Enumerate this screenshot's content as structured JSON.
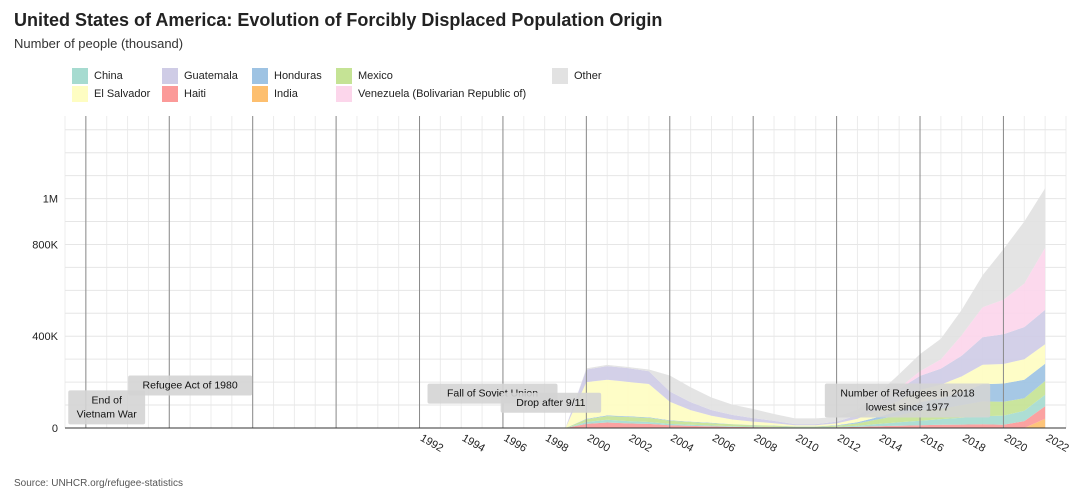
{
  "title": "United States of America:  Evolution of Forcibly Displaced Population Origin",
  "subtitle": "Number of people (thousand)",
  "source": "Source: UNHCR.org/refugee-statistics",
  "chart_data": {
    "type": "area",
    "stacked": true,
    "years": [
      1975,
      1976,
      1977,
      1978,
      1979,
      1980,
      1981,
      1982,
      1983,
      1984,
      1985,
      1986,
      1987,
      1988,
      1989,
      1990,
      1991,
      1992,
      1993,
      1994,
      1995,
      1996,
      1997,
      1998,
      1999,
      2000,
      2001,
      2002,
      2003,
      2004,
      2005,
      2006,
      2007,
      2008,
      2009,
      2010,
      2011,
      2012,
      2013,
      2014,
      2015,
      2016,
      2017,
      2018,
      2019,
      2020,
      2021,
      2022
    ],
    "series": [
      {
        "name": "India",
        "color": "#fdbf6f",
        "values": [
          0,
          0,
          0,
          0,
          0,
          0,
          0,
          0,
          0,
          0,
          0,
          0,
          0,
          0,
          0,
          0,
          0,
          0,
          0,
          0,
          0,
          0,
          0,
          0,
          0,
          0,
          0,
          0,
          0,
          0,
          0,
          0,
          0,
          0,
          0,
          0,
          0,
          0,
          0,
          0,
          0,
          0,
          0,
          0,
          0,
          0,
          0,
          40
        ]
      },
      {
        "name": "Haiti",
        "color": "#fb9a99",
        "values": [
          0,
          0,
          0,
          0,
          0,
          0,
          0,
          0,
          0,
          0,
          0,
          0,
          0,
          0,
          0,
          0,
          0,
          0,
          0,
          0,
          0,
          0,
          0,
          0,
          0,
          18,
          24,
          20,
          18,
          12,
          9,
          7,
          5,
          4,
          3,
          2,
          2,
          3,
          5,
          8,
          10,
          12,
          14,
          15,
          16,
          14,
          30,
          55
        ]
      },
      {
        "name": "China",
        "color": "#a6dbd0",
        "values": [
          0,
          0,
          0,
          0,
          0,
          0,
          0,
          0,
          0,
          0,
          0,
          0,
          0,
          0,
          0,
          0,
          0,
          0,
          0,
          0,
          0,
          0,
          0,
          0,
          0,
          8,
          12,
          10,
          8,
          6,
          5,
          4,
          3,
          2,
          2,
          1,
          1,
          2,
          5,
          10,
          15,
          20,
          25,
          30,
          35,
          40,
          45,
          50
        ]
      },
      {
        "name": "Mexico",
        "color": "#c5e395",
        "values": [
          0,
          0,
          0,
          0,
          0,
          0,
          0,
          0,
          0,
          0,
          0,
          0,
          0,
          0,
          0,
          0,
          0,
          0,
          0,
          0,
          0,
          0,
          0,
          0,
          0,
          12,
          16,
          18,
          18,
          14,
          12,
          10,
          8,
          6,
          5,
          3,
          3,
          5,
          10,
          20,
          30,
          45,
          45,
          55,
          65,
          60,
          55,
          60
        ]
      },
      {
        "name": "Honduras",
        "color": "#9ec3e3",
        "values": [
          0,
          0,
          0,
          0,
          0,
          0,
          0,
          0,
          0,
          0,
          0,
          0,
          0,
          0,
          0,
          0,
          0,
          0,
          0,
          0,
          0,
          0,
          0,
          0,
          0,
          2,
          3,
          3,
          3,
          2,
          2,
          2,
          1,
          1,
          1,
          1,
          1,
          2,
          5,
          10,
          20,
          35,
          45,
          55,
          75,
          80,
          80,
          75
        ]
      },
      {
        "name": "El Salvador",
        "color": "#fefdc2",
        "values": [
          0,
          0,
          0,
          0,
          0,
          0,
          0,
          0,
          0,
          0,
          0,
          0,
          0,
          0,
          0,
          0,
          0,
          0,
          0,
          0,
          0,
          0,
          0,
          0,
          0,
          160,
          155,
          150,
          145,
          80,
          50,
          30,
          20,
          15,
          10,
          5,
          5,
          8,
          15,
          30,
          45,
          55,
          60,
          70,
          85,
          85,
          90,
          85
        ]
      },
      {
        "name": "Guatemala",
        "color": "#cfcce6",
        "values": [
          0,
          0,
          0,
          0,
          0,
          0,
          0,
          0,
          0,
          0,
          0,
          0,
          0,
          0,
          0,
          0,
          0,
          0,
          0,
          0,
          0,
          0,
          0,
          0,
          0,
          55,
          60,
          60,
          55,
          45,
          35,
          25,
          20,
          15,
          10,
          5,
          5,
          8,
          15,
          30,
          50,
          60,
          70,
          90,
          120,
          130,
          140,
          150
        ]
      },
      {
        "name": "Venezuela (Bolivarian Republic of)",
        "color": "#fcd6eb",
        "values": [
          0,
          0,
          0,
          0,
          0,
          0,
          0,
          0,
          0,
          0,
          0,
          0,
          0,
          0,
          0,
          0,
          0,
          0,
          0,
          0,
          0,
          0,
          0,
          0,
          0,
          0,
          0,
          0,
          0,
          0,
          0,
          0,
          0,
          0,
          0,
          0,
          0,
          0,
          0,
          2,
          5,
          20,
          40,
          90,
          130,
          150,
          190,
          270
        ]
      },
      {
        "name": "Other",
        "color": "#e2e2e2",
        "values": [
          0,
          0,
          0,
          0,
          0,
          0,
          0,
          0,
          0,
          0,
          0,
          0,
          0,
          0,
          0,
          0,
          0,
          0,
          0,
          0,
          0,
          0,
          0,
          0,
          0,
          5,
          5,
          5,
          8,
          70,
          65,
          55,
          45,
          40,
          30,
          25,
          25,
          20,
          25,
          40,
          60,
          75,
          90,
          110,
          140,
          220,
          270,
          260
        ]
      }
    ],
    "legend_order": [
      "China",
      "Guatemala",
      "Honduras",
      "Mexico",
      "Other",
      "El Salvador",
      "Haiti",
      "India",
      "Venezuela (Bolivarian Republic of)"
    ],
    "y_ticks": [
      {
        "value": 0,
        "label": "0"
      },
      {
        "value": 400,
        "label": "400K"
      },
      {
        "value": 800,
        "label": "800K"
      },
      {
        "value": 1000,
        "label": "1M"
      }
    ],
    "ylim": [
      0,
      1360
    ],
    "xlim": [
      1975,
      2023
    ],
    "x_tick_labels": [
      1992,
      1994,
      1996,
      1998,
      2000,
      2002,
      2004,
      2006,
      2008,
      2010,
      2012,
      2014,
      2016,
      2018,
      2020,
      2022
    ],
    "event_lines": [
      1976,
      1980,
      1984,
      1988,
      1992,
      1996,
      2000,
      2004,
      2008,
      2012,
      2016,
      2020
    ],
    "annotations": [
      {
        "lines": [
          "End of",
          "Vietnam War"
        ],
        "year": 1977,
        "value": 90
      },
      {
        "lines": [
          "Refugee Act of 1980"
        ],
        "year": 1981,
        "value": 185
      },
      {
        "lines": [
          "Fall of Soviet Union"
        ],
        "year": 1995.5,
        "value": 150
      },
      {
        "lines": [
          "Drop after 9/11"
        ],
        "year": 1998.3,
        "value": 110
      },
      {
        "lines": [
          "Number of Refugees in 2018",
          "lowest since 1977"
        ],
        "year": 2015.4,
        "value": 120
      }
    ],
    "grid": true,
    "legend_position": "top-left"
  }
}
